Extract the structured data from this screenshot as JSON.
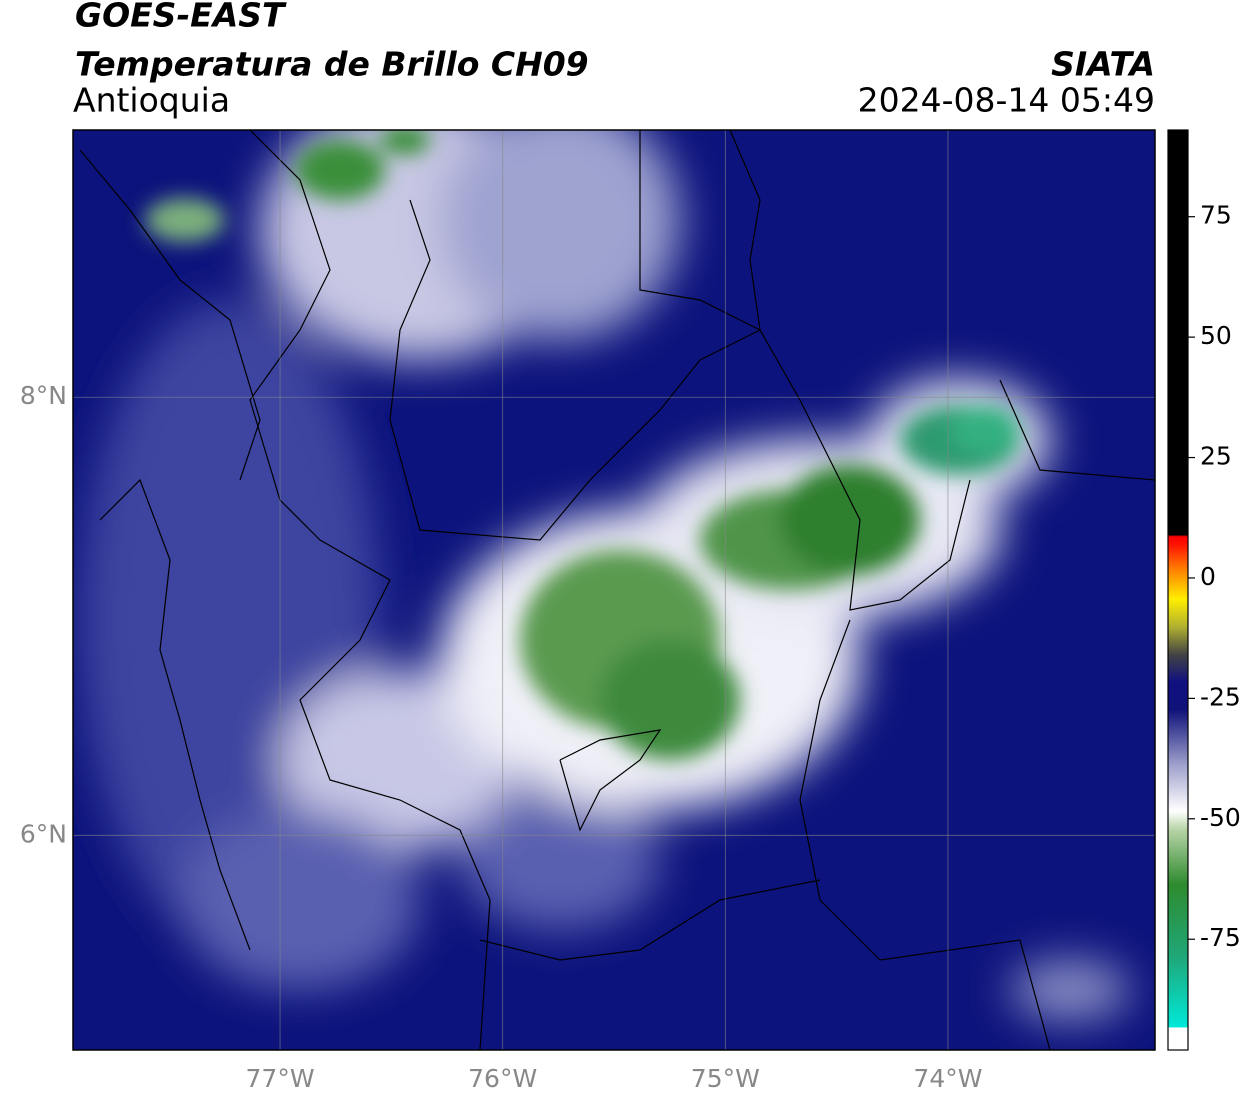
{
  "header": {
    "satellite": "GOES-EAST",
    "title": "Temperatura de Brillo CH09",
    "region": "Antioquia",
    "source": "SIATA",
    "datetime": "2024-08-14 05:49"
  },
  "map": {
    "lon_range": [
      -77.93,
      -73.07
    ],
    "lat_range": [
      5.02,
      9.22
    ],
    "lat_ticks": [
      {
        "value": 8,
        "label": "8°N"
      },
      {
        "value": 6,
        "label": "6°N"
      }
    ],
    "lon_ticks": [
      {
        "value": -77,
        "label": "77°W"
      },
      {
        "value": -76,
        "label": "76°W"
      },
      {
        "value": -75,
        "label": "75°W"
      },
      {
        "value": -74,
        "label": "74°W"
      }
    ],
    "grid": true
  },
  "colorbar": {
    "range": [
      -98,
      93
    ],
    "ticks": [
      75,
      50,
      25,
      0,
      -25,
      -50,
      -75
    ]
  }
}
